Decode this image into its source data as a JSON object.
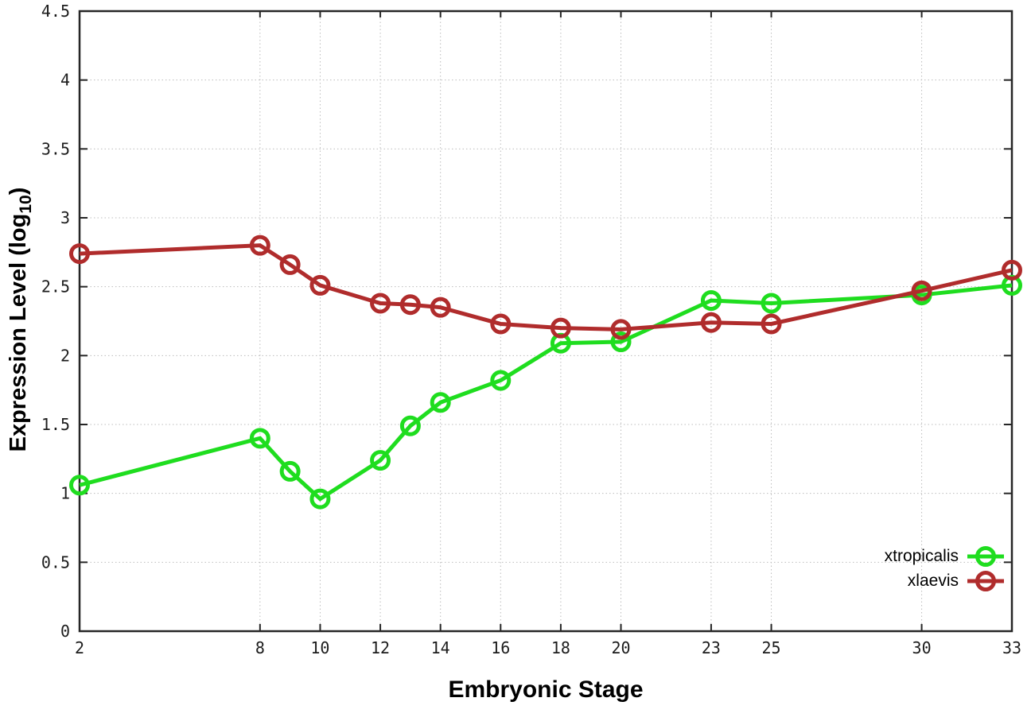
{
  "chart_data": {
    "type": "line",
    "title": "",
    "xlabel": "Embryonic Stage",
    "ylabel": "Expression Level (log10)",
    "ylabel_parts": {
      "prefix": "Expression Level (log",
      "sub": "10",
      "suffix": ")"
    },
    "xlim": [
      2,
      33
    ],
    "ylim": [
      0,
      4.5
    ],
    "xticks": [
      2,
      8,
      10,
      12,
      14,
      16,
      18,
      20,
      23,
      25,
      30,
      33
    ],
    "yticks": [
      0,
      0.5,
      1,
      1.5,
      2,
      2.5,
      3,
      3.5,
      4,
      4.5
    ],
    "grid": true,
    "grid_style": "dotted",
    "legend_position": "inside-bottom-right",
    "marker": "open-circle",
    "x": [
      2,
      8,
      9,
      10,
      12,
      13,
      14,
      16,
      18,
      20,
      23,
      25,
      30,
      33
    ],
    "series": [
      {
        "name": "xtropicalis",
        "color": "#1fdd1f",
        "values": [
          1.06,
          1.4,
          1.16,
          0.96,
          1.24,
          1.49,
          1.66,
          1.82,
          2.09,
          2.1,
          2.4,
          2.38,
          2.44,
          2.51
        ]
      },
      {
        "name": "xlaevis",
        "color": "#b02c2c",
        "values": [
          2.74,
          2.8,
          2.66,
          2.51,
          2.38,
          2.37,
          2.35,
          2.23,
          2.2,
          2.19,
          2.24,
          2.23,
          2.47,
          2.62
        ]
      }
    ]
  },
  "colors": {
    "background": "#ffffff",
    "frame": "#262626",
    "grid": "#bcbcbc",
    "tick_text": "#1c1c1c"
  }
}
